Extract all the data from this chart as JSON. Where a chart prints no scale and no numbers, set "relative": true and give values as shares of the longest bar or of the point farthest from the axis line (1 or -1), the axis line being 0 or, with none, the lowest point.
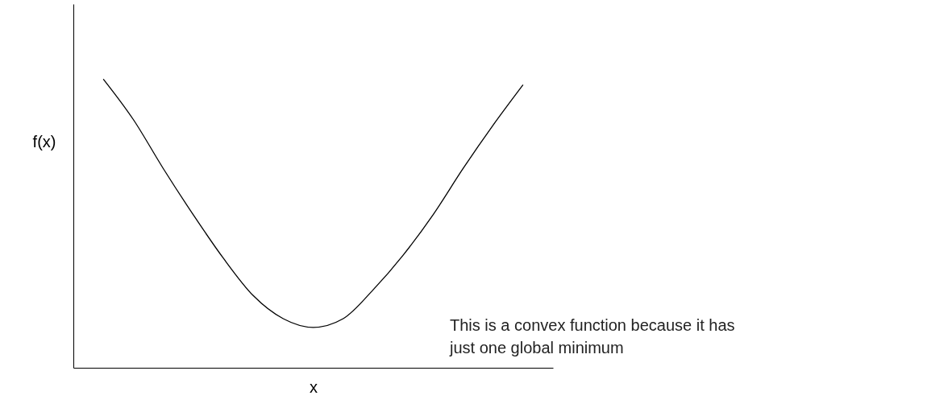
{
  "chart_data": {
    "type": "line",
    "relative": true,
    "xlabel": "x",
    "ylabel": "f(x)",
    "color": "#000000",
    "grid": false,
    "categories": [
      null,
      null,
      null,
      null,
      null,
      null,
      null,
      null,
      null,
      null,
      null,
      null,
      null,
      null,
      null
    ],
    "values": [
      1,
      0.86,
      0.69,
      0.53,
      0.38,
      0.25,
      0.17,
      0.14,
      0.17,
      0.27,
      0.39,
      0.53,
      0.69,
      0.84,
      0.98
    ],
    "annotations": [
      "This is a convex function because it has just one global minimum"
    ]
  }
}
